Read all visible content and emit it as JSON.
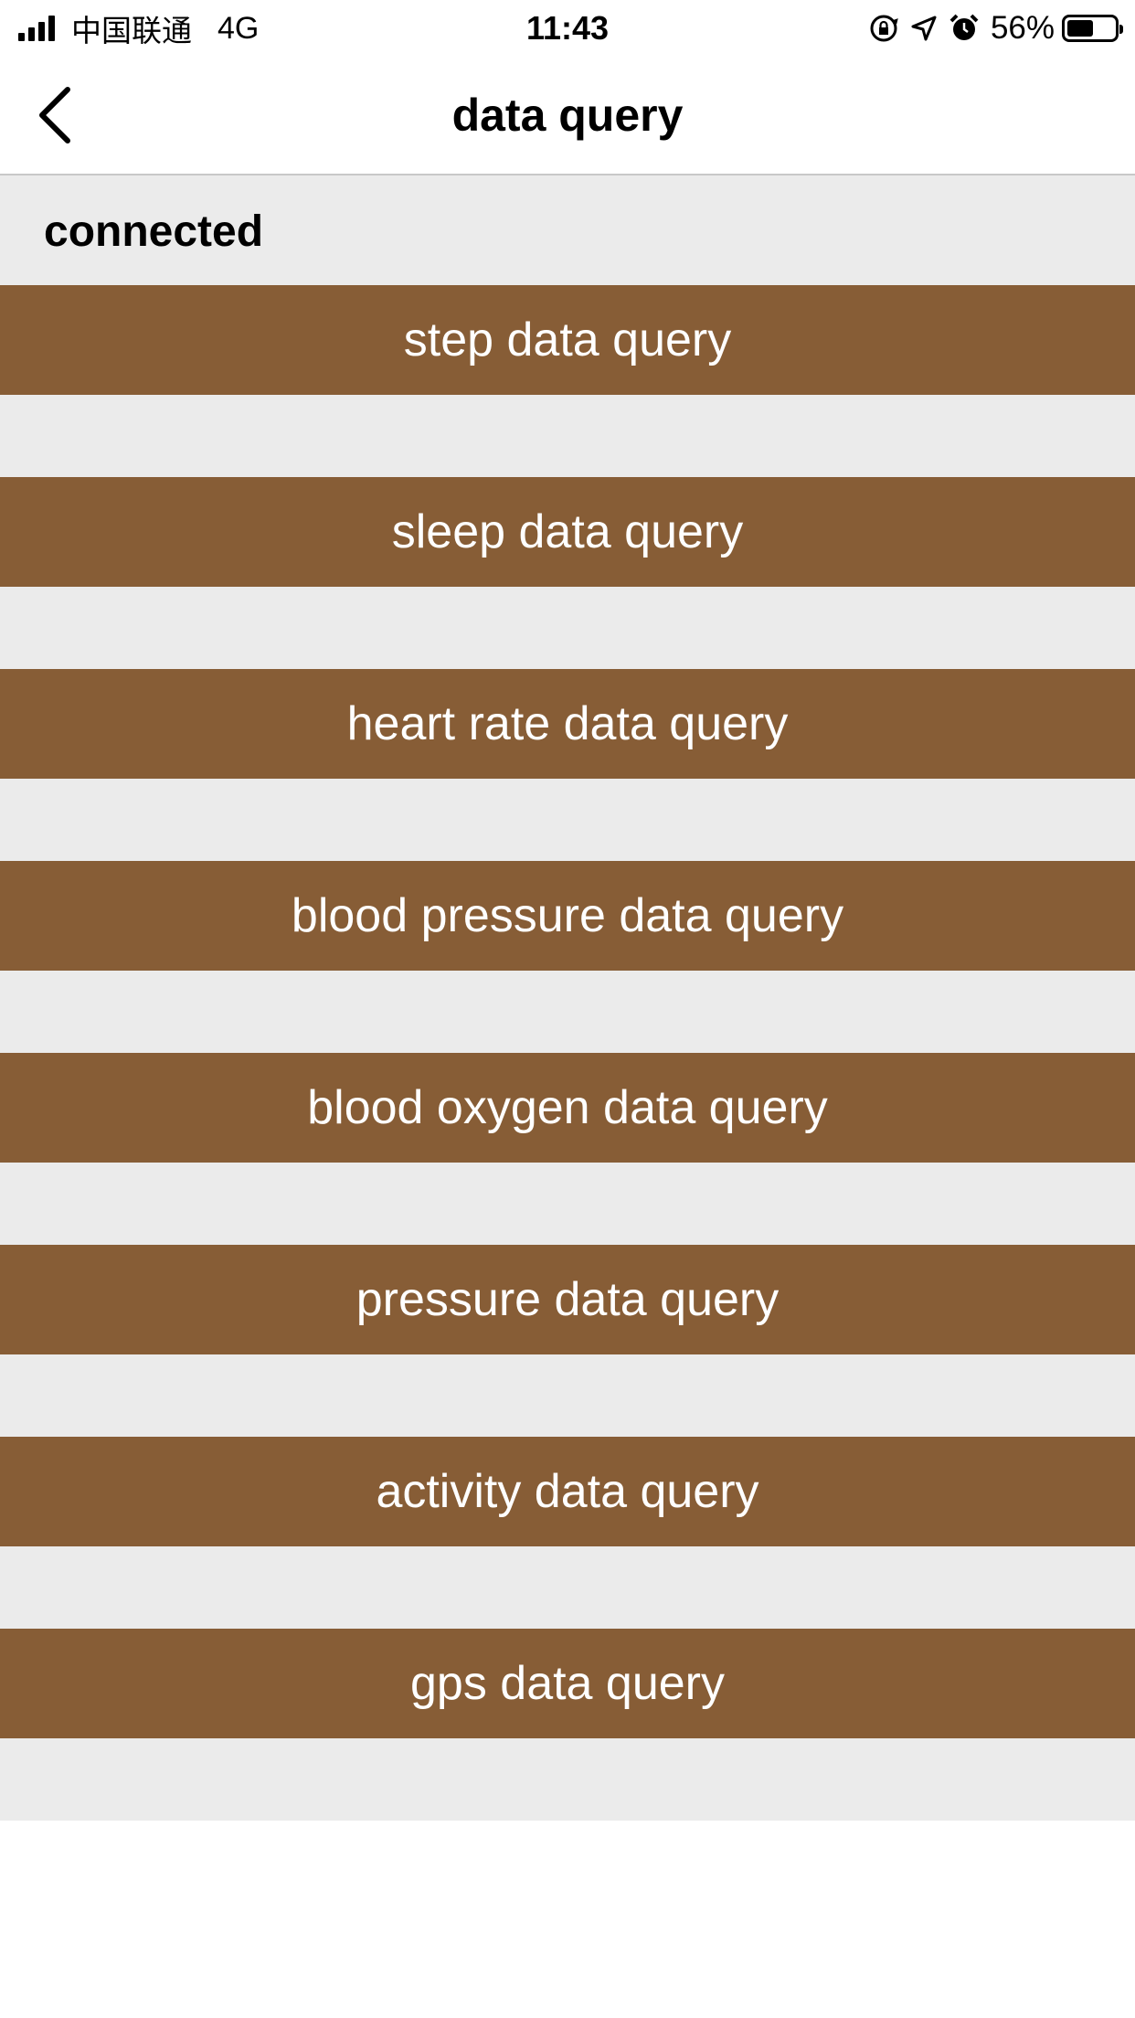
{
  "status_bar": {
    "carrier": "中国联通",
    "network": "4G",
    "time": "11:43",
    "battery_percent": "56%",
    "battery_level": 0.56,
    "icons": [
      "signal-icon",
      "orientation-lock-icon",
      "location-icon",
      "alarm-icon",
      "battery-icon"
    ]
  },
  "nav": {
    "title": "data query",
    "back_icon": "chevron-left-icon"
  },
  "connection": {
    "status": "connected"
  },
  "queries": [
    {
      "label": "step data query"
    },
    {
      "label": "sleep data query"
    },
    {
      "label": "heart rate data query"
    },
    {
      "label": "blood pressure data query"
    },
    {
      "label": "blood oxygen data query"
    },
    {
      "label": "pressure data query"
    },
    {
      "label": "activity data query"
    },
    {
      "label": "gps data query"
    }
  ],
  "colors": {
    "button_background": "#875d36",
    "button_text": "#ffffff",
    "content_background": "#ebebeb",
    "nav_background": "#ffffff"
  }
}
